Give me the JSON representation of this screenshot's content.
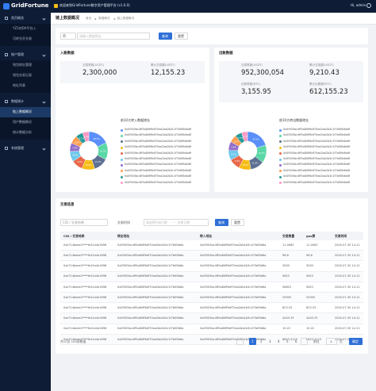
{
  "sidebar": {
    "logo": "GridFortune",
    "groups": [
      {
        "title": "首页概览",
        "items": [
          {
            "label": "YZ1的DA平台入"
          },
          {
            "label": "可转兑开交易"
          }
        ]
      },
      {
        "title": "账户管理",
        "items": [
          {
            "label": "钱包地址管理"
          },
          {
            "label": "钱包交易记录"
          },
          {
            "label": "地址列表"
          }
        ]
      },
      {
        "title": "数据统计",
        "items": [
          {
            "label": "链上数据概况",
            "active": true
          },
          {
            "label": "用户数据概况"
          },
          {
            "label": "统计数据分析"
          }
        ]
      },
      {
        "title": "系统管理",
        "items": []
      }
    ]
  },
  "header": {
    "welcome": "欢迎来到GridFortune数字资产管理平台 (v1.0.0)",
    "user": "Hi, admin"
  },
  "tabs": {
    "active": "链上数据概况",
    "breadcrumb": [
      "首页",
      "数据概况",
      "链上数据概况"
    ]
  },
  "search": {
    "select": "币",
    "placeholder": "请输入数据地址",
    "query": "查询",
    "reset": "重置"
  },
  "cards": [
    {
      "title": "入账数据",
      "stats": [
        {
          "label": "交易笔数(USDT)",
          "value": "2,300,000"
        },
        {
          "label": "累计交易额(USDT)",
          "value": "12,155.23"
        }
      ],
      "donut": {
        "title": "前10大转入数据地址",
        "values": [
          18.2,
          14.5,
          12.3,
          10.9,
          9.6,
          8.8,
          7.4,
          6.8,
          6.1,
          5.4
        ],
        "value_labels": [
          "18.2%",
          "14.5%",
          "12.3%",
          "10.9%",
          "9.6%",
          "8.8%",
          "7.4%",
          "6.8%",
          "6.1%",
          "5.4%"
        ],
        "colors": [
          "#5b8ff9",
          "#5ad8a6",
          "#5d7092",
          "#f6bd16",
          "#e8684a",
          "#6dc8ec",
          "#9270ca",
          "#ff9d4d",
          "#269a99",
          "#ff99c3"
        ],
        "labels": [
          "0x0f505bc4ff5a80ff6df70ea2bb2b3c1f7bf0fb6a6f",
          "0x0f505bc4ff5a80ff6df70ea2bb2b3c1f7bf0fb6a6f",
          "0x0f505bc4ff5a80ff6df70ea2bb2b3c1f7bf0fb6a6f",
          "0x0f505bc4ff5a80ff6df70ea2bb2b3c1f7bf0fb6a6f",
          "0x0f505bc4ff5a80ff6df70ea2bb2b3c1f7bf0fb6a6f",
          "0x0f505bc4ff5a80ff6df70ea2bb2b3c1f7bf0fb6a6f",
          "0x0f505bc4ff5a80ff6df70ea2bb2b3c1f7bf0fb6a6f",
          "0x0f505bc4ff5a80ff6df70ea2bb2b3c1f7bf0fb6a6f",
          "0x0f505bc4ff5a80ff6df70ea2bb2b3c1f7bf0fb6a6f",
          "0x0f505bc4ff5a80ff6df70ea2bb2b3c1f7bf0fb6a6f"
        ]
      }
    },
    {
      "title": "出账数据",
      "stats": [
        {
          "label": "交易笔数(USDT)",
          "value": "952,300,054"
        },
        {
          "label": "累计交易额(USDT)",
          "value": "9,210.43"
        },
        {
          "label": "出账笔数(BTC)",
          "value": "3,155.95"
        },
        {
          "label": "累计出账额(BTC)",
          "value": "612,155.23"
        }
      ],
      "donut": {
        "title": "前10大转出数据地址",
        "values": [
          20.3,
          15.1,
          11.8,
          10.2,
          9.5,
          8.3,
          7.6,
          6.4,
          5.7,
          5.1
        ],
        "value_labels": [
          "20.3%",
          "15.1%",
          "11.8%",
          "10.2%",
          "9.5%",
          "8.3%",
          "7.6%",
          "6.4%",
          "5.7%",
          "5.1%"
        ],
        "colors": [
          "#5b8ff9",
          "#5ad8a6",
          "#5d7092",
          "#f6bd16",
          "#e8684a",
          "#6dc8ec",
          "#9270ca",
          "#ff9d4d",
          "#269a99",
          "#ff99c3"
        ],
        "labels": [
          "0x0f505bc4ff5a80ff6df70ea2bb2b3c1f7bf0fb6a6f",
          "0x0f505bc4ff5a80ff6df70ea2bb2b3c1f7bf0fb6a6f",
          "0x0f505bc4ff5a80ff6df70ea2bb2b3c1f7bf0fb6a6f",
          "0x0f505bc4ff5a80ff6df70ea2bb2b3c1f7bf0fb6a6f",
          "0x0f505bc4ff5a80ff6df70ea2bb2b3c1f7bf0fb6a6f",
          "0x0f505bc4ff5a80ff6df70ea2bb2b3c1f7bf0fb6a6f",
          "0x0f505bc4ff5a80ff6df70ea2bb2b3c1f7bf0fb6a6f",
          "0x0f505bc4ff5a80ff6df70ea2bb2b3c1f7bf0fb6a6f",
          "0x0f505bc4ff5a80ff6df70ea2bb2b3c1f7bf0fb6a6f",
          "0x0f505bc4ff5a80ff6df70ea2bb2b3c1f7bf0fb6a6f"
        ]
      }
    }
  ],
  "table": {
    "title": "交易信息",
    "filters": {
      "search": "CID / 交易哈希",
      "time_label": "交易时间",
      "start": "请选择开始日期",
      "sep": "~",
      "end": "结束日期",
      "query": "查询",
      "reset": "重置"
    },
    "columns": [
      "CID / 交易哈希",
      "转出地址",
      "转入地址",
      "交易数量",
      "gas费",
      "交易时间"
    ],
    "rows": [
      [
        "0xe714beee2****fe41e4e1698",
        "0x0f505bc4ff5a80ff6df70ea2bb2b3c1f7bf0fb6a",
        "0x0f505bc4ff5a80ff6df70ea2bb2b3c1f7bf0fb6a",
        "11.0083",
        "11.0083",
        "2020-07-30 14:11"
      ],
      [
        "0xe714beee2****fe41e4e1698",
        "0x0f505bc4ff5a80ff6df70ea2bb2b3c1f7bf0fb6a",
        "0x0f505bc4ff5a80ff6df70ea2bb2b3c1f7bf0fb6a",
        "96.8",
        "96.8",
        "2020-07-30 14:11"
      ],
      [
        "0xe714beee2****fe41e4e1698",
        "0x0f505bc4ff5a80ff6df70ea2bb2b3c1f7bf0fb6a",
        "0x0f505bc4ff5a80ff6df70ea2bb2b3c1f7bf0fb6a",
        "3000",
        "3000",
        "2020-07-30 14:11"
      ],
      [
        "0xe714beee2****fe41e4e1698",
        "0x0f505bc4ff5a80ff6df70ea2bb2b3c1f7bf0fb6a",
        "0x0f505bc4ff5a80ff6df70ea2bb2b3c1f7bf0fb6a",
        "5623",
        "5623",
        "2020-07-30 14:11"
      ],
      [
        "0xe714beee2****fe41e4e1698",
        "0x0f505bc4ff5a80ff6df70ea2bb2b3c1f7bf0fb6a",
        "0x0f505bc4ff5a80ff6df70ea2bb2b3c1f7bf0fb6a",
        "56623",
        "5623",
        "2020-07-30 14:11"
      ],
      [
        "0xe714beee2****fe41e4e1698",
        "0x0f505bc4ff5a80ff6df70ea2bb2b3c1f7bf0fb6a",
        "0x0f505bc4ff5a80ff6df70ea2bb2b3c1f7bf0fb6a",
        "29300",
        "29300",
        "2020-07-30 14:11"
      ],
      [
        "0xe714beee2****fe41e4e1698",
        "0x0f505bc4ff5a80ff6df70ea2bb2b3c1f7bf0fb6a",
        "0x0f505bc4ff5a80ff6df70ea2bb2b3c1f7bf0fb6a",
        "823.33",
        "823.33",
        "2020-07-30 14:11"
      ],
      [
        "0xe714beee2****fe41e4e1698",
        "0x0f505bc4ff5a80ff6df70ea2bb2b3c1f7bf0fb6a",
        "0x0f505bc4ff5a80ff6df70ea2bb2b3c1f7bf0fb6a",
        "4445.33",
        "4445.33",
        "2020-07-30 14:11"
      ],
      [
        "0xe714beee2****fe41e4e1698",
        "0x0f505bc4ff5a80ff6df70ea2bb2b3c1f7bf0fb6a",
        "0x0f505bc4ff5a80ff6df70ea2bb2b3c1f7bf0fb6a",
        "10.22",
        "10.22",
        "2020-07-30 14:11"
      ],
      [
        "0xe714beee2****fe41e4e1698",
        "0x0f505bc4ff5a80ff6df70ea2bb2b3c1f7bf0fb6a",
        "0x0f505bc4ff5a80ff6df70ea2bb2b3c1f7bf0fb6a",
        "8623.3123",
        "8623.3123",
        "2020-07-30 14:11"
      ]
    ],
    "pagination": {
      "total": "共10页 100条数据",
      "pages": [
        "1",
        "2",
        "3",
        "4",
        "5",
        "6"
      ],
      "current": "1",
      "goto": "前往",
      "goto_value": "1",
      "unit": "页",
      "confirm": "确定"
    }
  }
}
